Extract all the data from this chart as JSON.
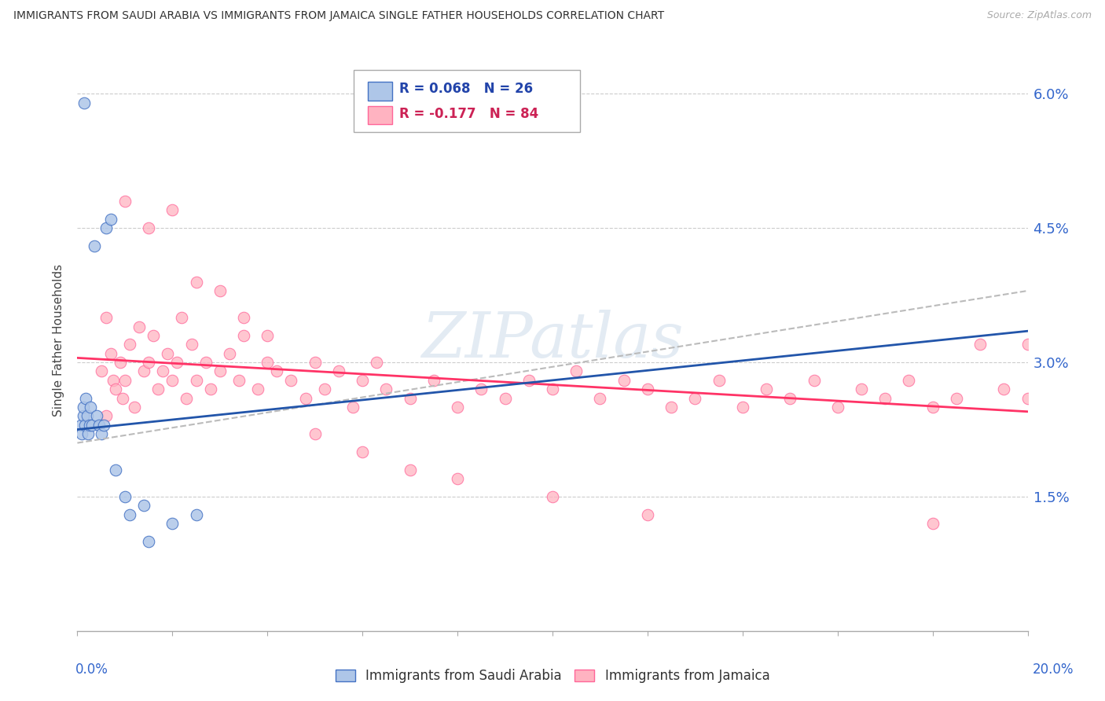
{
  "title": "IMMIGRANTS FROM SAUDI ARABIA VS IMMIGRANTS FROM JAMAICA SINGLE FATHER HOUSEHOLDS CORRELATION CHART",
  "source": "Source: ZipAtlas.com",
  "ylabel": "Single Father Households",
  "legend1_r": "R = 0.068",
  "legend1_n": "N = 26",
  "legend2_r": "R = -0.177",
  "legend2_n": "N = 84",
  "legend1_label": "Immigrants from Saudi Arabia",
  "legend2_label": "Immigrants from Jamaica",
  "color_blue_fill": "#AEC6E8",
  "color_blue_edge": "#4472C4",
  "color_blue_line": "#2255AA",
  "color_pink_fill": "#FFB3C1",
  "color_pink_edge": "#FF6699",
  "color_pink_line": "#FF3366",
  "color_gray_dash": "#BBBBBB",
  "xlim": [
    0.0,
    20.0
  ],
  "ylim": [
    0.0,
    6.5
  ],
  "ytick_vals": [
    1.5,
    3.0,
    4.5,
    6.0
  ],
  "ytick_labels": [
    "1.5%",
    "3.0%",
    "4.5%",
    "6.0%"
  ],
  "saudi_x": [
    0.08,
    0.1,
    0.12,
    0.13,
    0.15,
    0.16,
    0.18,
    0.2,
    0.22,
    0.25,
    0.28,
    0.3,
    0.35,
    0.4,
    0.45,
    0.5,
    0.55,
    0.6,
    0.7,
    0.8,
    1.0,
    1.1,
    1.4,
    1.5,
    2.0,
    2.5
  ],
  "saudi_y": [
    2.3,
    2.2,
    2.4,
    2.5,
    5.9,
    2.3,
    2.6,
    2.4,
    2.2,
    2.3,
    2.5,
    2.3,
    4.3,
    2.4,
    2.3,
    2.2,
    2.3,
    4.5,
    4.6,
    1.8,
    1.5,
    1.3,
    1.4,
    1.0,
    1.2,
    1.3
  ],
  "jamaica_x": [
    0.5,
    0.6,
    0.7,
    0.75,
    0.8,
    0.9,
    0.95,
    1.0,
    1.1,
    1.2,
    1.3,
    1.4,
    1.5,
    1.6,
    1.7,
    1.8,
    1.9,
    2.0,
    2.1,
    2.2,
    2.3,
    2.4,
    2.5,
    2.7,
    2.8,
    3.0,
    3.2,
    3.4,
    3.5,
    3.8,
    4.0,
    4.2,
    4.5,
    4.8,
    5.0,
    5.2,
    5.5,
    5.8,
    6.0,
    6.3,
    6.5,
    7.0,
    7.5,
    8.0,
    8.5,
    9.0,
    9.5,
    10.0,
    10.5,
    11.0,
    11.5,
    12.0,
    12.5,
    13.0,
    13.5,
    14.0,
    14.5,
    15.0,
    15.5,
    16.0,
    16.5,
    17.0,
    17.5,
    18.0,
    18.5,
    19.0,
    19.5,
    20.0,
    1.0,
    1.5,
    2.0,
    2.5,
    3.0,
    3.5,
    4.0,
    5.0,
    6.0,
    7.0,
    8.0,
    10.0,
    12.0,
    18.0,
    20.0,
    0.6
  ],
  "jamaica_y": [
    2.9,
    3.5,
    3.1,
    2.8,
    2.7,
    3.0,
    2.6,
    2.8,
    3.2,
    2.5,
    3.4,
    2.9,
    3.0,
    3.3,
    2.7,
    2.9,
    3.1,
    2.8,
    3.0,
    3.5,
    2.6,
    3.2,
    2.8,
    3.0,
    2.7,
    2.9,
    3.1,
    2.8,
    3.3,
    2.7,
    3.0,
    2.9,
    2.8,
    2.6,
    3.0,
    2.7,
    2.9,
    2.5,
    2.8,
    3.0,
    2.7,
    2.6,
    2.8,
    2.5,
    2.7,
    2.6,
    2.8,
    2.7,
    2.9,
    2.6,
    2.8,
    2.7,
    2.5,
    2.6,
    2.8,
    2.5,
    2.7,
    2.6,
    2.8,
    2.5,
    2.7,
    2.6,
    2.8,
    2.5,
    2.6,
    3.2,
    2.7,
    2.6,
    4.8,
    4.5,
    4.7,
    3.9,
    3.8,
    3.5,
    3.3,
    2.2,
    2.0,
    1.8,
    1.7,
    1.5,
    1.3,
    1.2,
    3.2,
    2.4
  ],
  "saudi_trend_x": [
    0.0,
    20.0
  ],
  "saudi_trend_y": [
    2.25,
    3.35
  ],
  "jamaica_trend_x": [
    0.0,
    20.0
  ],
  "jamaica_trend_y": [
    3.05,
    2.45
  ],
  "gray_trend_x": [
    0.0,
    20.0
  ],
  "gray_trend_y": [
    2.1,
    3.8
  ],
  "watermark": "ZIPatlas"
}
